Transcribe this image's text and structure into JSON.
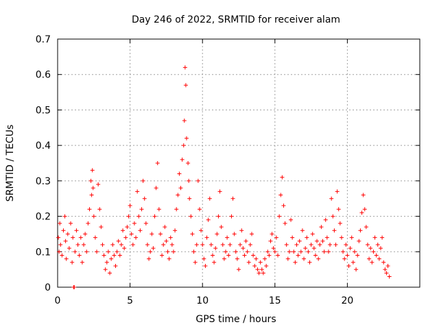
{
  "chart_data": {
    "type": "scatter",
    "title": "Day 246 of 2022, SRMTID for receiver alam",
    "xlabel": "GPS time / hours",
    "ylabel": "SRMTID / TECUs",
    "xlim": [
      0,
      25
    ],
    "ylim": [
      0,
      0.7
    ],
    "xticks": [
      0,
      5,
      10,
      15,
      20
    ],
    "xtick_labels": [
      "0",
      "5",
      "10",
      "15",
      "20"
    ],
    "yticks": [
      0,
      0.1,
      0.2,
      0.3,
      0.4,
      0.5,
      0.6,
      0.7
    ],
    "ytick_labels": [
      "0",
      "0.1",
      "0.2",
      "0.3",
      "0.4",
      "0.5",
      "0.6",
      "0.7"
    ],
    "grid": true,
    "marker": "+",
    "color": "#ff0000",
    "series": [
      {
        "name": "SRMTID",
        "points": [
          [
            0.05,
            0.14
          ],
          [
            0.1,
            0.1
          ],
          [
            0.15,
            0.18
          ],
          [
            0.2,
            0.12
          ],
          [
            0.3,
            0.09
          ],
          [
            0.4,
            0.16
          ],
          [
            0.5,
            0.2
          ],
          [
            0.55,
            0.13
          ],
          [
            0.6,
            0.08
          ],
          [
            0.7,
            0.15
          ],
          [
            0.8,
            0.11
          ],
          [
            0.9,
            0.18
          ],
          [
            1.0,
            0.07
          ],
          [
            1.05,
            0.14
          ],
          [
            1.1,
            0.0
          ],
          [
            1.15,
            0.0
          ],
          [
            1.2,
            0.1
          ],
          [
            1.3,
            0.16
          ],
          [
            1.4,
            0.12
          ],
          [
            1.5,
            0.09
          ],
          [
            1.6,
            0.14
          ],
          [
            1.7,
            0.07
          ],
          [
            1.8,
            0.12
          ],
          [
            1.9,
            0.15
          ],
          [
            2.0,
            0.1
          ],
          [
            2.1,
            0.18
          ],
          [
            2.2,
            0.22
          ],
          [
            2.3,
            0.3
          ],
          [
            2.35,
            0.26
          ],
          [
            2.4,
            0.33
          ],
          [
            2.45,
            0.28
          ],
          [
            2.5,
            0.2
          ],
          [
            2.6,
            0.14
          ],
          [
            2.7,
            0.1
          ],
          [
            2.8,
            0.29
          ],
          [
            2.9,
            0.22
          ],
          [
            3.0,
            0.17
          ],
          [
            3.1,
            0.12
          ],
          [
            3.2,
            0.09
          ],
          [
            3.3,
            0.05
          ],
          [
            3.4,
            0.07
          ],
          [
            3.5,
            0.1
          ],
          [
            3.6,
            0.04
          ],
          [
            3.7,
            0.08
          ],
          [
            3.8,
            0.12
          ],
          [
            3.9,
            0.09
          ],
          [
            4.0,
            0.06
          ],
          [
            4.1,
            0.1
          ],
          [
            4.2,
            0.13
          ],
          [
            4.3,
            0.09
          ],
          [
            4.4,
            0.12
          ],
          [
            4.5,
            0.16
          ],
          [
            4.6,
            0.11
          ],
          [
            4.7,
            0.14
          ],
          [
            4.8,
            0.17
          ],
          [
            4.9,
            0.2
          ],
          [
            5.0,
            0.23
          ],
          [
            5.1,
            0.15
          ],
          [
            5.2,
            0.12
          ],
          [
            5.3,
            0.18
          ],
          [
            5.4,
            0.14
          ],
          [
            5.5,
            0.27
          ],
          [
            5.6,
            0.2
          ],
          [
            5.7,
            0.16
          ],
          [
            5.8,
            0.22
          ],
          [
            5.9,
            0.3
          ],
          [
            6.0,
            0.25
          ],
          [
            6.1,
            0.18
          ],
          [
            6.2,
            0.12
          ],
          [
            6.3,
            0.08
          ],
          [
            6.4,
            0.1
          ],
          [
            6.5,
            0.15
          ],
          [
            6.6,
            0.11
          ],
          [
            6.7,
            0.2
          ],
          [
            6.8,
            0.28
          ],
          [
            6.9,
            0.35
          ],
          [
            7.0,
            0.22
          ],
          [
            7.1,
            0.15
          ],
          [
            7.2,
            0.09
          ],
          [
            7.3,
            0.12
          ],
          [
            7.4,
            0.17
          ],
          [
            7.5,
            0.13
          ],
          [
            7.6,
            0.1
          ],
          [
            7.7,
            0.08
          ],
          [
            7.8,
            0.14
          ],
          [
            7.9,
            0.12
          ],
          [
            8.0,
            0.1
          ],
          [
            8.1,
            0.16
          ],
          [
            8.2,
            0.22
          ],
          [
            8.3,
            0.26
          ],
          [
            8.4,
            0.32
          ],
          [
            8.5,
            0.28
          ],
          [
            8.6,
            0.36
          ],
          [
            8.7,
            0.4
          ],
          [
            8.75,
            0.47
          ],
          [
            8.8,
            0.62
          ],
          [
            8.85,
            0.57
          ],
          [
            8.9,
            0.42
          ],
          [
            9.0,
            0.35
          ],
          [
            9.05,
            0.3
          ],
          [
            9.1,
            0.25
          ],
          [
            9.2,
            0.2
          ],
          [
            9.3,
            0.15
          ],
          [
            9.4,
            0.1
          ],
          [
            9.5,
            0.07
          ],
          [
            9.6,
            0.12
          ],
          [
            9.7,
            0.3
          ],
          [
            9.8,
            0.22
          ],
          [
            9.9,
            0.16
          ],
          [
            10.0,
            0.12
          ],
          [
            10.1,
            0.08
          ],
          [
            10.2,
            0.06
          ],
          [
            10.3,
            0.14
          ],
          [
            10.4,
            0.19
          ],
          [
            10.5,
            0.25
          ],
          [
            10.6,
            0.12
          ],
          [
            10.7,
            0.09
          ],
          [
            10.8,
            0.07
          ],
          [
            10.9,
            0.11
          ],
          [
            11.0,
            0.15
          ],
          [
            11.1,
            0.2
          ],
          [
            11.2,
            0.27
          ],
          [
            11.3,
            0.17
          ],
          [
            11.4,
            0.12
          ],
          [
            11.5,
            0.08
          ],
          [
            11.6,
            0.1
          ],
          [
            11.7,
            0.14
          ],
          [
            11.8,
            0.09
          ],
          [
            11.9,
            0.12
          ],
          [
            12.0,
            0.2
          ],
          [
            12.1,
            0.25
          ],
          [
            12.2,
            0.15
          ],
          [
            12.3,
            0.1
          ],
          [
            12.4,
            0.08
          ],
          [
            12.5,
            0.05
          ],
          [
            12.6,
            0.12
          ],
          [
            12.7,
            0.16
          ],
          [
            12.8,
            0.11
          ],
          [
            12.9,
            0.09
          ],
          [
            13.0,
            0.13
          ],
          [
            13.1,
            0.1
          ],
          [
            13.2,
            0.07
          ],
          [
            13.3,
            0.12
          ],
          [
            13.4,
            0.15
          ],
          [
            13.5,
            0.09
          ],
          [
            13.6,
            0.06
          ],
          [
            13.7,
            0.08
          ],
          [
            13.8,
            0.05
          ],
          [
            13.9,
            0.04
          ],
          [
            14.0,
            0.07
          ],
          [
            14.1,
            0.05
          ],
          [
            14.2,
            0.04
          ],
          [
            14.3,
            0.08
          ],
          [
            14.4,
            0.06
          ],
          [
            14.5,
            0.1
          ],
          [
            14.6,
            0.09
          ],
          [
            14.7,
            0.13
          ],
          [
            14.8,
            0.15
          ],
          [
            14.9,
            0.11
          ],
          [
            15.0,
            0.1
          ],
          [
            15.1,
            0.14
          ],
          [
            15.2,
            0.09
          ],
          [
            15.3,
            0.2
          ],
          [
            15.4,
            0.26
          ],
          [
            15.5,
            0.31
          ],
          [
            15.6,
            0.23
          ],
          [
            15.7,
            0.18
          ],
          [
            15.8,
            0.12
          ],
          [
            15.9,
            0.08
          ],
          [
            16.0,
            0.1
          ],
          [
            16.1,
            0.19
          ],
          [
            16.2,
            0.14
          ],
          [
            16.3,
            0.1
          ],
          [
            16.4,
            0.07
          ],
          [
            16.5,
            0.12
          ],
          [
            16.6,
            0.09
          ],
          [
            16.7,
            0.13
          ],
          [
            16.8,
            0.1
          ],
          [
            16.9,
            0.16
          ],
          [
            17.0,
            0.08
          ],
          [
            17.1,
            0.11
          ],
          [
            17.2,
            0.14
          ],
          [
            17.3,
            0.1
          ],
          [
            17.4,
            0.07
          ],
          [
            17.5,
            0.12
          ],
          [
            17.6,
            0.15
          ],
          [
            17.7,
            0.11
          ],
          [
            17.8,
            0.09
          ],
          [
            17.9,
            0.13
          ],
          [
            18.0,
            0.08
          ],
          [
            18.1,
            0.12
          ],
          [
            18.2,
            0.17
          ],
          [
            18.3,
            0.13
          ],
          [
            18.4,
            0.1
          ],
          [
            18.5,
            0.19
          ],
          [
            18.6,
            0.14
          ],
          [
            18.7,
            0.1
          ],
          [
            18.8,
            0.12
          ],
          [
            18.9,
            0.25
          ],
          [
            19.0,
            0.2
          ],
          [
            19.1,
            0.16
          ],
          [
            19.2,
            0.12
          ],
          [
            19.3,
            0.27
          ],
          [
            19.4,
            0.22
          ],
          [
            19.5,
            0.18
          ],
          [
            19.6,
            0.14
          ],
          [
            19.7,
            0.1
          ],
          [
            19.8,
            0.08
          ],
          [
            19.9,
            0.12
          ],
          [
            20.0,
            0.09
          ],
          [
            20.1,
            0.06
          ],
          [
            20.2,
            0.11
          ],
          [
            20.3,
            0.14
          ],
          [
            20.4,
            0.07
          ],
          [
            20.5,
            0.1
          ],
          [
            20.6,
            0.05
          ],
          [
            20.7,
            0.09
          ],
          [
            20.8,
            0.13
          ],
          [
            20.9,
            0.16
          ],
          [
            21.0,
            0.21
          ],
          [
            21.1,
            0.26
          ],
          [
            21.2,
            0.22
          ],
          [
            21.3,
            0.17
          ],
          [
            21.4,
            0.12
          ],
          [
            21.5,
            0.08
          ],
          [
            21.6,
            0.11
          ],
          [
            21.7,
            0.07
          ],
          [
            21.8,
            0.1
          ],
          [
            21.9,
            0.14
          ],
          [
            22.0,
            0.09
          ],
          [
            22.1,
            0.12
          ],
          [
            22.2,
            0.08
          ],
          [
            22.3,
            0.11
          ],
          [
            22.4,
            0.14
          ],
          [
            22.5,
            0.07
          ],
          [
            22.6,
            0.05
          ],
          [
            22.7,
            0.04
          ],
          [
            22.8,
            0.06
          ],
          [
            22.9,
            0.03
          ]
        ]
      }
    ]
  }
}
